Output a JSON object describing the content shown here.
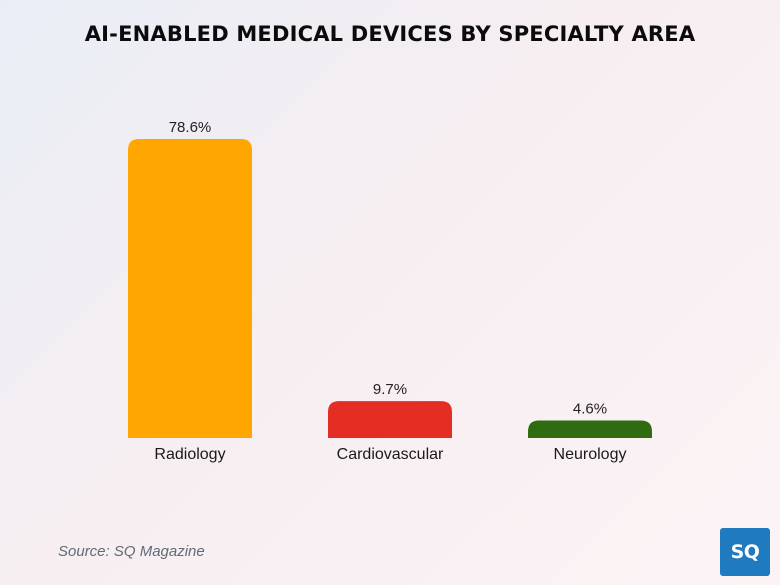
{
  "chart_data": {
    "type": "bar",
    "title": "AI-ENABLED MEDICAL DEVICES BY SPECIALTY AREA",
    "categories": [
      "Radiology",
      "Cardiovascular",
      "Neurology"
    ],
    "values": [
      78.6,
      9.7,
      4.6
    ],
    "value_labels": [
      "78.6%",
      "9.7%",
      "4.6%"
    ],
    "colors": [
      "#ffa600",
      "#e42d23",
      "#2f6c11"
    ],
    "xlabel": "",
    "ylabel": "",
    "ylim": [
      0,
      78.6
    ],
    "grid": false,
    "legend": "none"
  },
  "source": "Source: SQ Magazine",
  "logo": {
    "text": "SQ",
    "color": "#1f7ac0"
  }
}
